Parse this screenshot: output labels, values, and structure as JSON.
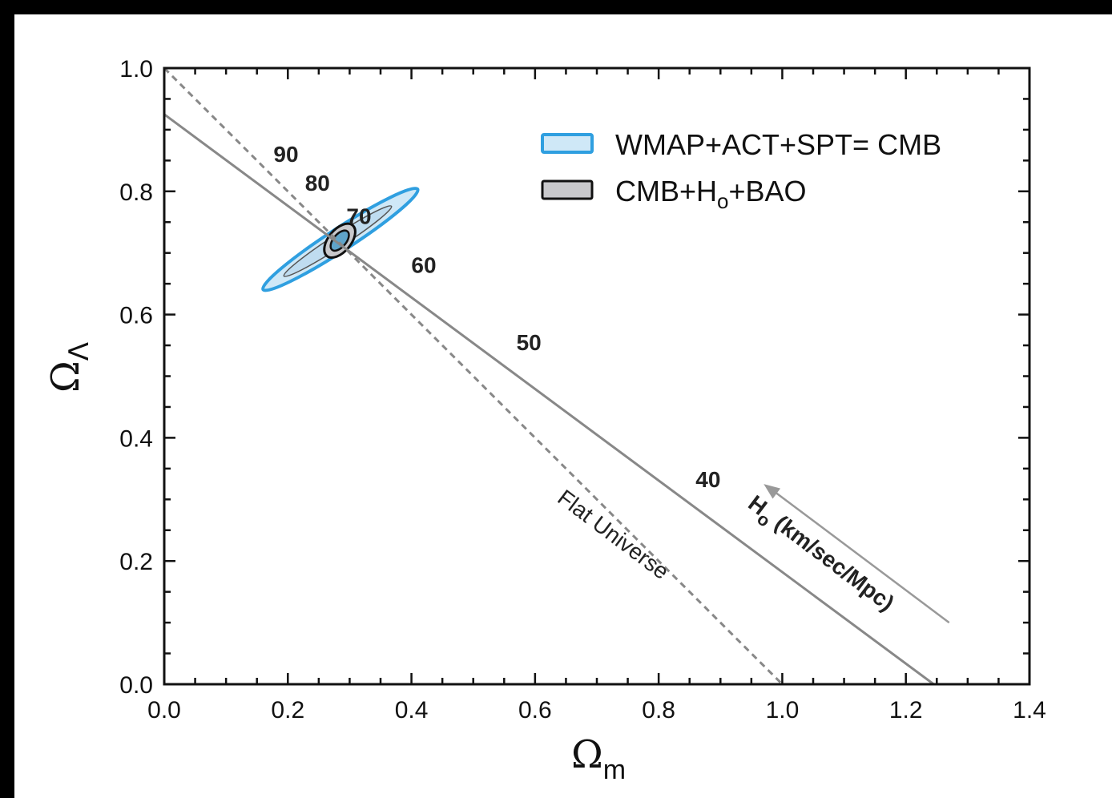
{
  "chart_data": {
    "type": "scatter",
    "xlabel": "Ω",
    "xlabel_sub": "m",
    "ylabel": "Ω",
    "ylabel_sub": "Λ",
    "xlim": [
      0.0,
      1.4
    ],
    "ylim": [
      0.0,
      1.0
    ],
    "x_ticks": [
      "0.0",
      "0.2",
      "0.4",
      "0.6",
      "0.8",
      "1.0",
      "1.2",
      "1.4"
    ],
    "y_ticks": [
      "0.0",
      "0.2",
      "0.4",
      "0.6",
      "0.8",
      "1.0"
    ],
    "legend_position": "top-right",
    "legend": [
      {
        "label": "WMAP+ACT+SPT= CMB",
        "color": "#2f9fe0",
        "fill": "#cfe8f7"
      },
      {
        "label_main": "CMB+H",
        "label_sub": "o",
        "label_tail": "+BAO",
        "color": "#111111",
        "fill": "#c9c9cc"
      }
    ],
    "series": [
      {
        "style": "dashed",
        "color": "#888888",
        "points": [
          [
            0.0,
            1.0
          ],
          [
            1.0,
            0.0
          ]
        ]
      },
      {
        "style": "solid",
        "color": "#888888",
        "points": [
          [
            0.0,
            0.925
          ],
          [
            1.245,
            0.0
          ]
        ]
      }
    ],
    "contours": [
      {
        "name": "WMAP+ACT+SPT= CMB",
        "center": [
          0.285,
          0.722
        ],
        "color": "#2f9fe0",
        "fill": "#cfe8f7"
      },
      {
        "name": "CMB+H0+BAO",
        "center": [
          0.284,
          0.72
        ],
        "color": "#111111",
        "fill": "#c9c9cc"
      }
    ],
    "h0_labels": [
      {
        "text": "90",
        "x": 0.197,
        "y": 0.848
      },
      {
        "text": "80",
        "x": 0.248,
        "y": 0.801
      },
      {
        "text": "70",
        "x": 0.315,
        "y": 0.747
      },
      {
        "text": "60",
        "x": 0.42,
        "y": 0.668
      },
      {
        "text": "50",
        "x": 0.59,
        "y": 0.542
      },
      {
        "text": "40",
        "x": 0.88,
        "y": 0.32
      }
    ],
    "annotations": {
      "flat": "Flat Universe",
      "h0_main": "H",
      "h0_sub": "o",
      "h0_tail": " (km/sec/Mpc)"
    },
    "arrow": {
      "from": [
        1.27,
        0.1
      ],
      "to": [
        0.97,
        0.325
      ],
      "color": "#999999"
    }
  }
}
